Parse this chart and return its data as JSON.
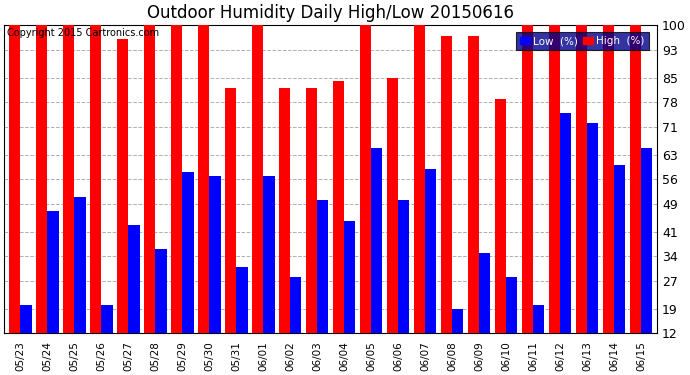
{
  "title": "Outdoor Humidity Daily High/Low 20150616",
  "copyright": "Copyright 2015 Cartronics.com",
  "categories": [
    "05/23",
    "05/24",
    "05/25",
    "05/26",
    "05/27",
    "05/28",
    "05/29",
    "05/30",
    "05/31",
    "06/01",
    "06/02",
    "06/03",
    "06/04",
    "06/05",
    "06/06",
    "06/07",
    "06/08",
    "06/09",
    "06/10",
    "06/11",
    "06/12",
    "06/13",
    "06/14",
    "06/15"
  ],
  "high": [
    100,
    100,
    100,
    100,
    96,
    100,
    100,
    100,
    82,
    100,
    82,
    82,
    84,
    100,
    85,
    100,
    97,
    97,
    79,
    100,
    100,
    100,
    100,
    100
  ],
  "low": [
    20,
    47,
    51,
    20,
    43,
    36,
    58,
    57,
    31,
    57,
    28,
    50,
    44,
    65,
    50,
    59,
    19,
    35,
    28,
    20,
    75,
    72,
    60,
    65
  ],
  "high_color": "#ff0000",
  "low_color": "#0000ff",
  "bg_color": "#ffffff",
  "grid_color": "#b0b0b0",
  "ylim": [
    12,
    100
  ],
  "yticks": [
    12,
    19,
    27,
    34,
    41,
    49,
    56,
    63,
    71,
    78,
    85,
    93,
    100
  ],
  "figsize": [
    6.9,
    3.75
  ],
  "dpi": 100
}
